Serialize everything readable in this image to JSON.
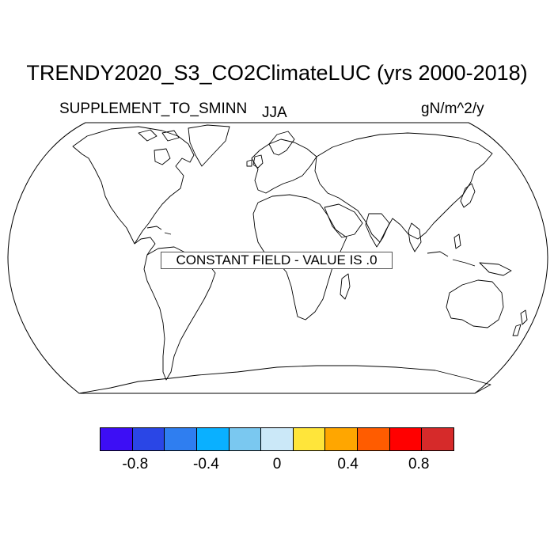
{
  "title": "TRENDY2020_S3_CO2ClimateLUC (yrs 2000-2018)",
  "variable": "SUPPLEMENT_TO_SMINN",
  "season": "JJA",
  "units": "gN/m^2/y",
  "notice": "CONSTANT FIELD - VALUE IS .0",
  "map": {
    "projection": "robinson",
    "coastlines": true
  },
  "colorbar": {
    "colors": [
      "#3d0ef5",
      "#2a46e6",
      "#2f7ef0",
      "#0ab0ff",
      "#7ac8f0",
      "#cbe8f8",
      "#ffe53a",
      "#ffa600",
      "#ff5c00",
      "#ff0000",
      "#d62a2a"
    ],
    "tick_labels": [
      "-0.8",
      "-0.4",
      "0",
      "0.4",
      "0.8"
    ],
    "tick_values": [
      -0.8,
      -0.4,
      0,
      0.4,
      0.8
    ],
    "levels": [
      -1.0,
      -0.8,
      -0.6,
      -0.4,
      -0.2,
      0,
      0.2,
      0.4,
      0.6,
      0.8,
      1.0
    ]
  }
}
